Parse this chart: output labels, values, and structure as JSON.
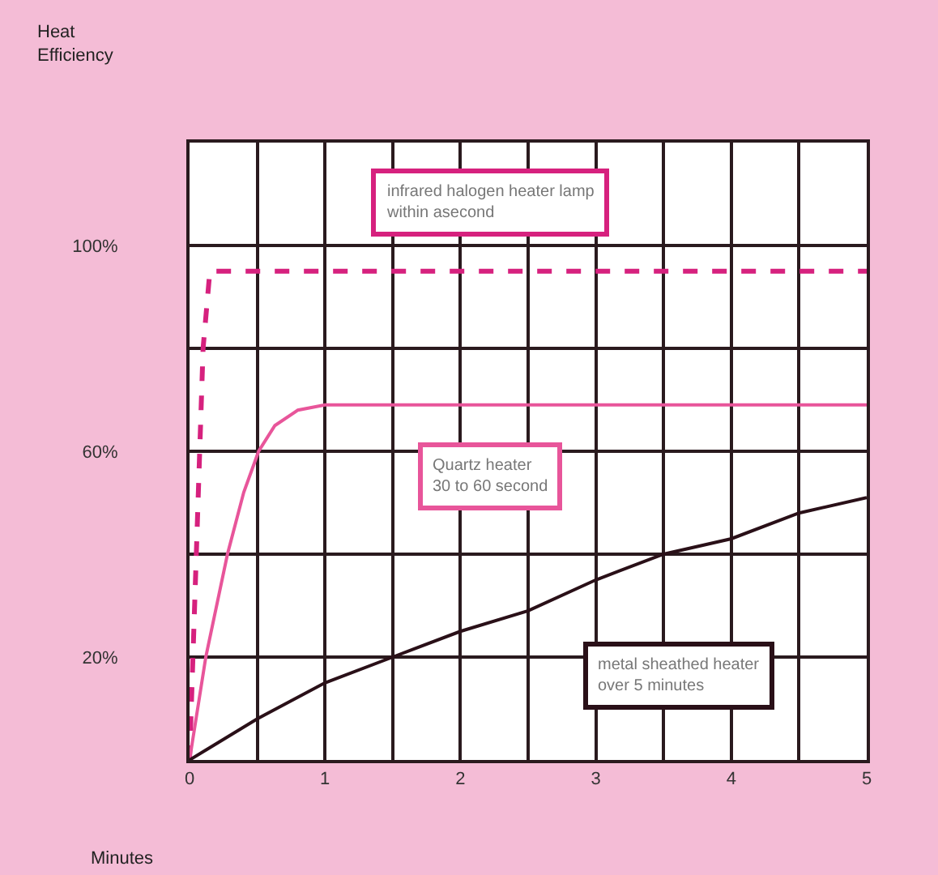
{
  "chart_data": {
    "type": "line",
    "xlabel": "Minutes",
    "ylabel": "Heat\nEfficiency",
    "series": [
      {
        "color": "#d6217e",
        "line_style": "dashed",
        "x": [
          0,
          0.05,
          0.1,
          0.15,
          5
        ],
        "values": [
          0,
          40,
          80,
          95,
          95
        ]
      },
      {
        "color": "#e8559a",
        "line_style": "solid",
        "x": [
          0,
          0.12,
          0.28,
          0.4,
          0.51,
          0.63,
          0.8,
          1,
          5
        ],
        "values": [
          0,
          20,
          40,
          52,
          60,
          65,
          68,
          69,
          69
        ]
      },
      {
        "color": "#2a1018",
        "line_style": "solid",
        "x": [
          0,
          0.5,
          1,
          1.5,
          2,
          2.5,
          3,
          3.5,
          4,
          4.5,
          5
        ],
        "values": [
          0,
          8,
          15,
          20,
          25,
          29,
          35,
          40,
          43,
          48,
          51
        ]
      }
    ],
    "annotations": [
      "infrared halogen heater lamp\nwithin asecond",
      "Quartz heater\n30 to 60 second",
      "metal sheathed heater\nover 5 minutes"
    ],
    "xlim": [
      0,
      5
    ],
    "xticks": [
      0,
      {
        "value": 0.5,
        "label": null
      },
      1,
      {
        "value": 1.5,
        "label": null
      },
      2,
      {
        "value": 2.5,
        "label": null
      },
      3,
      {
        "value": 3.5,
        "label": null
      },
      4,
      {
        "value": 4.5,
        "label": null
      },
      5
    ],
    "ylim": [
      0,
      120
    ],
    "yticks": [
      {
        "value": 0,
        "label": null
      },
      {
        "value": 20,
        "label": "20%"
      },
      {
        "value": 40,
        "label": null
      },
      {
        "value": 60,
        "label": "60%"
      },
      {
        "value": 80,
        "label": null
      },
      {
        "value": 100,
        "label": "100%"
      },
      {
        "value": 120,
        "label": null
      }
    ],
    "grid": true,
    "marker": "none"
  }
}
